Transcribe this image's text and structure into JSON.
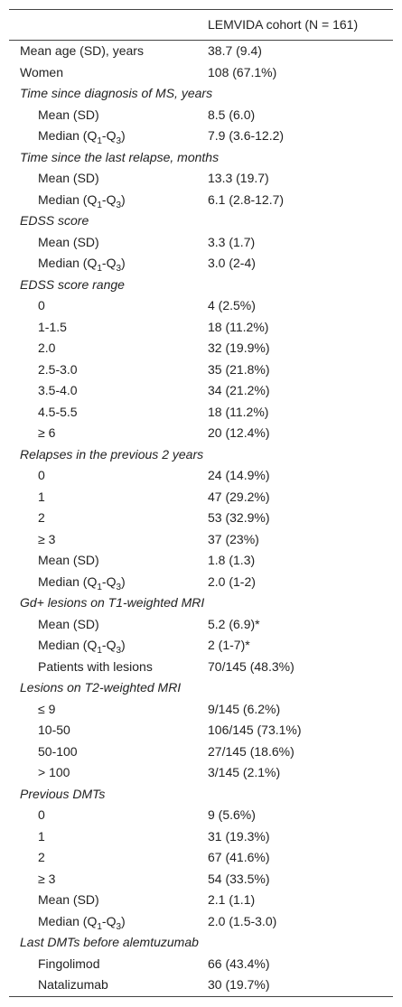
{
  "table": {
    "header": "LEMVIDA cohort (N = 161)",
    "rows": [
      [
        "Mean age (SD), years",
        "38.7 (9.4)"
      ],
      [
        "Women",
        "108 (67.1%)"
      ]
    ],
    "sections": [
      {
        "title": "Time since diagnosis of MS, years",
        "rows": [
          [
            "Mean (SD)",
            "8.5 (6.0)"
          ],
          [
            [
              "Median (Q",
              {
                "sub": "1"
              },
              "-Q",
              {
                "sub": "3"
              },
              ")"
            ],
            "7.9 (3.6-12.2)"
          ]
        ]
      },
      {
        "title": "Time since the last relapse, months",
        "rows": [
          [
            "Mean (SD)",
            "13.3 (19.7)"
          ],
          [
            [
              "Median (Q",
              {
                "sub": "1"
              },
              "-Q",
              {
                "sub": "3"
              },
              ")"
            ],
            "6.1 (2.8-12.7)"
          ]
        ]
      },
      {
        "title": "EDSS score",
        "rows": [
          [
            "Mean (SD)",
            "3.3 (1.7)"
          ],
          [
            [
              "Median (Q",
              {
                "sub": "1"
              },
              "-Q",
              {
                "sub": "3"
              },
              ")"
            ],
            "3.0 (2-4)"
          ]
        ]
      },
      {
        "title": "EDSS score range",
        "rows": [
          [
            "0",
            "4 (2.5%)"
          ],
          [
            "1-1.5",
            "18 (11.2%)"
          ],
          [
            "2.0",
            "32 (19.9%)"
          ],
          [
            "2.5-3.0",
            "35 (21.8%)"
          ],
          [
            "3.5-4.0",
            "34 (21.2%)"
          ],
          [
            "4.5-5.5",
            "18 (11.2%)"
          ],
          [
            "≥ 6",
            "20 (12.4%)"
          ]
        ]
      },
      {
        "title": "Relapses in the previous 2 years",
        "rows": [
          [
            "0",
            "24 (14.9%)"
          ],
          [
            "1",
            "47 (29.2%)"
          ],
          [
            "2",
            "53 (32.9%)"
          ],
          [
            "≥ 3",
            "37 (23%)"
          ],
          [
            "Mean (SD)",
            "1.8 (1.3)"
          ],
          [
            [
              "Median (Q",
              {
                "sub": "1"
              },
              "-Q",
              {
                "sub": "3"
              },
              ")"
            ],
            "2.0 (1-2)"
          ]
        ]
      },
      {
        "title": "Gd+ lesions on T1-weighted MRI",
        "rows": [
          [
            "Mean (SD)",
            "5.2 (6.9)*"
          ],
          [
            [
              "Median (Q",
              {
                "sub": "1"
              },
              "-Q",
              {
                "sub": "3"
              },
              ")"
            ],
            "2 (1-7)*"
          ],
          [
            "Patients with lesions",
            "70/145 (48.3%)"
          ]
        ]
      },
      {
        "title": "Lesions on T2-weighted MRI",
        "rows": [
          [
            "≤ 9",
            "9/145 (6.2%)"
          ],
          [
            "10-50",
            "106/145 (73.1%)"
          ],
          [
            "50-100",
            "27/145 (18.6%)"
          ],
          [
            "> 100",
            "3/145 (2.1%)"
          ]
        ]
      },
      {
        "title": "Previous DMTs",
        "rows": [
          [
            "0",
            "9 (5.6%)"
          ],
          [
            "1",
            "31 (19.3%)"
          ],
          [
            "2",
            "67 (41.6%)"
          ],
          [
            "≥ 3",
            "54 (33.5%)"
          ],
          [
            "Mean (SD)",
            "2.1 (1.1)"
          ],
          [
            [
              "Median (Q",
              {
                "sub": "1"
              },
              "-Q",
              {
                "sub": "3"
              },
              ")"
            ],
            "2.0 (1.5-3.0)"
          ]
        ]
      },
      {
        "title": "Last DMTs before alemtuzumab",
        "rows": [
          [
            "Fingolimod",
            "66 (43.4%)"
          ],
          [
            "Natalizumab",
            "30 (19.7%)"
          ]
        ]
      }
    ]
  }
}
